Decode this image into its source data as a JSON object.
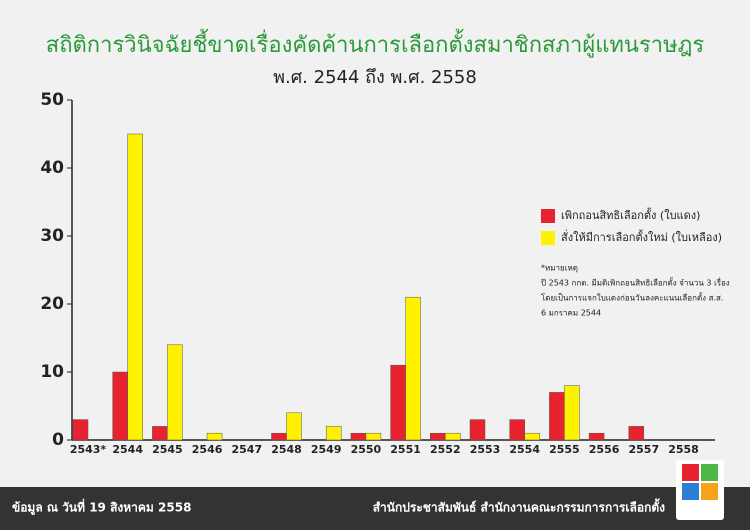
{
  "chart_data": {
    "type": "bar",
    "title": "สถิติการวินิจฉัยชี้ขาดเรื่องคัดค้านการเลือกตั้งสมาชิกสภาผู้แทนราษฎร",
    "subtitle": "พ.ศ. 2544 ถึง พ.ศ. 2558",
    "categories": [
      "2543*",
      "2544",
      "2545",
      "2546",
      "2547",
      "2548",
      "2549",
      "2550",
      "2551",
      "2552",
      "2553",
      "2554",
      "2555",
      "2556",
      "2557",
      "2558"
    ],
    "series": [
      {
        "name": "เพิกถอนสิทธิเลือกตั้ง (ใบแดง)",
        "color": "#e8222e",
        "values": [
          3,
          10,
          2,
          0,
          0,
          1,
          0,
          1,
          11,
          1,
          3,
          3,
          7,
          1,
          2,
          0
        ]
      },
      {
        "name": "สั่งให้มีการเลือกตั้งใหม่ (ใบเหลือง)",
        "color": "#fff200",
        "values": [
          0,
          45,
          14,
          1,
          0,
          4,
          2,
          1,
          21,
          1,
          0,
          1,
          8,
          0,
          0,
          0
        ]
      }
    ],
    "ylim": [
      0,
      50
    ],
    "yticks": [
      0,
      10,
      20,
      30,
      40,
      50
    ],
    "grid": false,
    "note": [
      "*หมายเหตุ",
      "ปี 2543 กกต. มีมติเพิกถอนสิทธิเลือกตั้ง จำนวน 3 เรื่อง",
      "โดยเป็นการแจกใบแดงก่อนวันลงคะแนนเลือกตั้ง ส.ส.",
      "6 มกราคม 2544"
    ],
    "footer_left": "ข้อมูล ณ วันที่ 19 สิงหาคม 2558",
    "footer_right": "สำนักประชาสัมพันธ์ สำนักงานคณะกรรมการการเลือกตั้ง"
  }
}
